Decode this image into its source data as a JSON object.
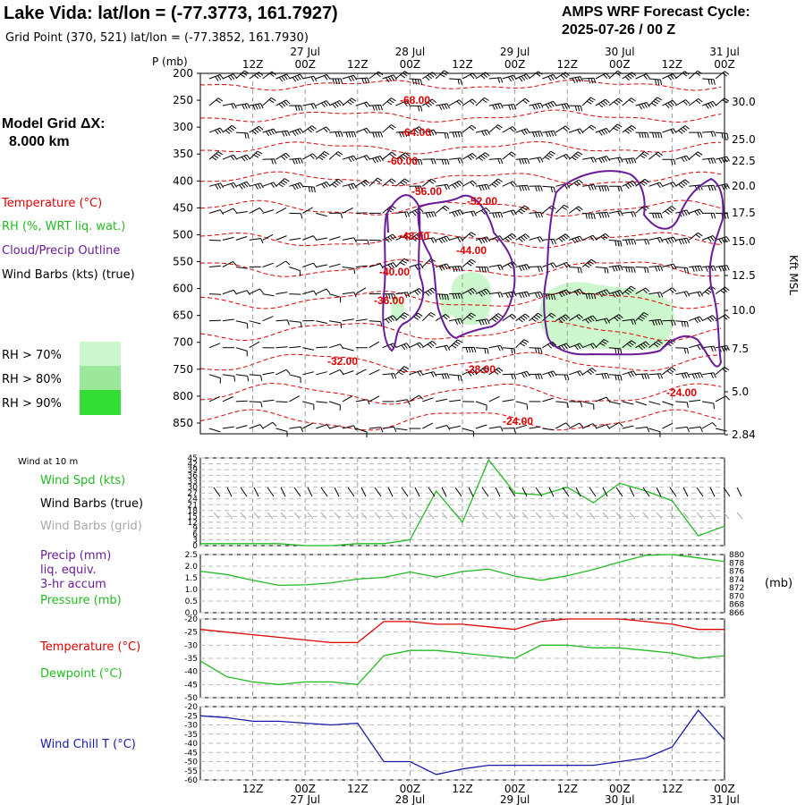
{
  "header": {
    "title": "Lake Vida:  lat/lon = (-77.3773, 161.7927)",
    "subtitle": "Grid Point (370, 521) lat/lon = (-77.3852, 161.7930)",
    "cycle_line1": "AMPS WRF Forecast Cycle:",
    "cycle_line2": "2025-07-26 / 00  Z"
  },
  "legend": {
    "grid_line1": "Model Grid ΔX:",
    "grid_line2": "8.000 km",
    "temperature": "Temperature (°C)",
    "rh": "RH (%, WRT liq. wat.)",
    "cloud": "Cloud/Precip Outline",
    "wind": "Wind Barbs (kts) (true)",
    "rh70": "RH > 70%",
    "rh80": "RH > 80%",
    "rh90": "RH > 90%",
    "wind10m": "Wind at 10 m",
    "wspd": "Wind Spd (kts)",
    "wbtrue": "Wind Barbs (true)",
    "wbgrid": "Wind Barbs (grid)",
    "precip1": "Precip (mm)",
    "precip2": "liq. equiv.",
    "precip3": "3-hr accum",
    "pressure": "Pressure (mb)",
    "temp2": "Temperature (°C)",
    "dewpoint": "Dewpoint (°C)",
    "windchill": "Wind Chill T (°C)"
  },
  "colors": {
    "temperature": "#e00000",
    "cloud": "#6a1b9a",
    "rh70": "#cdf7cd",
    "rh80": "#9be89b",
    "rh90": "#33dd33",
    "green": "#22bb22",
    "windchill": "#1a1aaa",
    "grid_barbs": "#aaaaaa"
  },
  "time_axis": {
    "top_row": [
      "12Z",
      "00Z",
      "12Z",
      "00Z",
      "12Z",
      "00Z",
      "12Z",
      "00Z",
      "12Z",
      "00Z"
    ],
    "date_labels": [
      "27 Jul",
      "28 Jul",
      "29 Jul",
      "30 Jul",
      "31 Jul"
    ],
    "bottom_row": [
      "12Z",
      "00Z",
      "12Z",
      "00Z",
      "12Z",
      "00Z",
      "12Z",
      "00Z",
      "12Z",
      "00Z"
    ]
  },
  "chart_data": [
    {
      "type": "heatmap",
      "title": "",
      "xlabel": "",
      "ylabel": "P (mb)",
      "ylabel_right": "Kft MSL",
      "x_range_hours": [
        0,
        120
      ],
      "ylim": [
        870,
        200
      ],
      "pressure_ticks": [
        "200",
        "250",
        "300",
        "350",
        "400",
        "450",
        "500",
        "550",
        "600",
        "650",
        "700",
        "750",
        "800",
        "850"
      ],
      "height_ticks": [
        "30.0",
        "25.0",
        "22.5",
        "20.0",
        "17.5",
        "15.0",
        "12.5",
        "10.0",
        "7.5",
        "5.0",
        "2.84"
      ],
      "temperature_labels": [
        "-68.00",
        "-64.00",
        "-60.00",
        "-56.00",
        "-52.00",
        "-48.00",
        "-44.00",
        "-40.00",
        "-36.00",
        "-32.00",
        "-28.00",
        "-24.00",
        "-24.00"
      ],
      "rh_shaded_regions": "RH > 70% patches near 550-700 mb, 28-31 Jul",
      "cloud_outline": "cloud/precip outline 28-31 Jul, 400-780 mb"
    },
    {
      "type": "line",
      "title": "",
      "series": [
        {
          "name": "Wind Spd (kts)",
          "x": [
            0,
            6,
            12,
            18,
            24,
            30,
            36,
            42,
            48,
            54,
            60,
            66,
            72,
            78,
            84,
            90,
            96,
            102,
            108,
            114,
            120
          ],
          "values": [
            1,
            1,
            1,
            1,
            0,
            0,
            1,
            1,
            3,
            28,
            12,
            44,
            27,
            26,
            30,
            22,
            32,
            28,
            23,
            5,
            10
          ]
        }
      ],
      "y_ticks": [
        "45",
        "42",
        "39",
        "36",
        "33",
        "30",
        "27",
        "24",
        "21",
        "18",
        "15",
        "12",
        "9",
        "6",
        "3",
        "0"
      ],
      "ylim": [
        0,
        45
      ]
    },
    {
      "type": "line",
      "title": "",
      "series": [
        {
          "name": "Pressure (mb)",
          "x": [
            0,
            6,
            12,
            18,
            24,
            30,
            36,
            42,
            48,
            54,
            60,
            66,
            72,
            78,
            84,
            90,
            96,
            102,
            108,
            114,
            120
          ],
          "values": [
            876.0,
            875.2,
            873.8,
            872.6,
            872.7,
            873.2,
            874.1,
            874.5,
            875.8,
            874.6,
            875.9,
            876.5,
            874.8,
            873.8,
            874.9,
            876.4,
            878.2,
            879.8,
            880.0,
            879.2,
            878.3
          ]
        }
      ],
      "y_ticks_left": [
        "2.5",
        "2.0",
        "1.5",
        "1.0",
        "0.5",
        "0.0"
      ],
      "y_ticks_right": [
        "880",
        "878",
        "876",
        "874",
        "872",
        "870",
        "868",
        "866"
      ],
      "ylim_precip": [
        0,
        2.5
      ],
      "ylim_pressure": [
        866,
        880
      ],
      "right_unit": "(mb)"
    },
    {
      "type": "line",
      "title": "",
      "series": [
        {
          "name": "Temperature (°C)",
          "x": [
            0,
            6,
            12,
            18,
            24,
            30,
            36,
            42,
            48,
            54,
            60,
            66,
            72,
            78,
            84,
            90,
            96,
            102,
            108,
            114,
            120
          ],
          "values": [
            -24,
            -25,
            -26,
            -27,
            -28,
            -29,
            -29,
            -21,
            -21,
            -22,
            -22,
            -23,
            -24,
            -21,
            -20,
            -20,
            -20,
            -21,
            -22,
            -24,
            -24
          ]
        },
        {
          "name": "Dewpoint (°C)",
          "x": [
            0,
            6,
            12,
            18,
            24,
            30,
            36,
            42,
            48,
            54,
            60,
            66,
            72,
            78,
            84,
            90,
            96,
            102,
            108,
            114,
            120
          ],
          "values": [
            -36,
            -42,
            -44,
            -45,
            -44,
            -44,
            -45,
            -34,
            -32,
            -32,
            -33,
            -34,
            -35,
            -30,
            -30,
            -31,
            -31,
            -32,
            -33,
            -35,
            -34
          ]
        }
      ],
      "y_ticks": [
        "-20",
        "-25",
        "-30",
        "-35",
        "-40",
        "-45",
        "-50"
      ],
      "ylim": [
        -50,
        -20
      ]
    },
    {
      "type": "line",
      "title": "",
      "series": [
        {
          "name": "Wind Chill T (°C)",
          "x": [
            0,
            6,
            12,
            18,
            24,
            30,
            36,
            42,
            48,
            54,
            60,
            66,
            72,
            78,
            84,
            90,
            96,
            102,
            108,
            114,
            120
          ],
          "values": [
            -25,
            -26,
            -28,
            -28,
            -29,
            -30,
            -29,
            -50,
            -50,
            -57,
            -54,
            -52,
            -52,
            -52,
            -52,
            -52,
            -50,
            -48,
            -42,
            -22,
            -38
          ]
        }
      ],
      "y_ticks": [
        "-20",
        "-25",
        "-30",
        "-35",
        "-40",
        "-45",
        "-50",
        "-55",
        "-60"
      ],
      "ylim": [
        -60,
        -20
      ]
    }
  ]
}
